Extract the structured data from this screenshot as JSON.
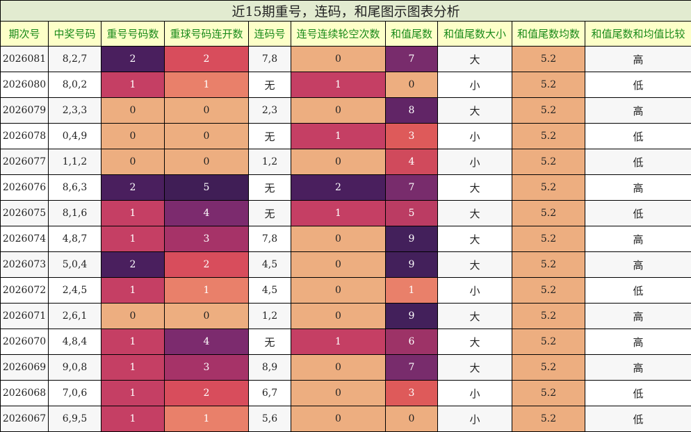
{
  "title": "近15期重号，连码，和尾图示图表分析",
  "headers": [
    "期次号",
    "中奖号码",
    "重号号码数",
    "重球号码连开数",
    "连码号",
    "连号连续轮空次数",
    "和值尾数",
    "和值尾数大小",
    "和值尾数均数",
    "和值尾数和均值比较"
  ],
  "rows": [
    {
      "period": "2026081",
      "numbers": "8,2,7",
      "repeat_count": "2",
      "repeat_streak": "2",
      "consec": "7,8",
      "consec_gap": "0",
      "sum_tail": "7",
      "size": "大",
      "avg": "5.2",
      "compare": "高"
    },
    {
      "period": "2026080",
      "numbers": "8,0,2",
      "repeat_count": "1",
      "repeat_streak": "1",
      "consec": "无",
      "consec_gap": "1",
      "sum_tail": "0",
      "size": "小",
      "avg": "5.2",
      "compare": "低"
    },
    {
      "period": "2026079",
      "numbers": "2,3,3",
      "repeat_count": "0",
      "repeat_streak": "0",
      "consec": "2,3",
      "consec_gap": "0",
      "sum_tail": "8",
      "size": "大",
      "avg": "5.2",
      "compare": "高"
    },
    {
      "period": "2026078",
      "numbers": "0,4,9",
      "repeat_count": "0",
      "repeat_streak": "0",
      "consec": "无",
      "consec_gap": "1",
      "sum_tail": "3",
      "size": "小",
      "avg": "5.2",
      "compare": "低"
    },
    {
      "period": "2026077",
      "numbers": "1,1,2",
      "repeat_count": "0",
      "repeat_streak": "0",
      "consec": "1,2",
      "consec_gap": "0",
      "sum_tail": "4",
      "size": "小",
      "avg": "5.2",
      "compare": "低"
    },
    {
      "period": "2026076",
      "numbers": "8,6,3",
      "repeat_count": "2",
      "repeat_streak": "5",
      "consec": "无",
      "consec_gap": "2",
      "sum_tail": "7",
      "size": "大",
      "avg": "5.2",
      "compare": "高"
    },
    {
      "period": "2026075",
      "numbers": "8,1,6",
      "repeat_count": "1",
      "repeat_streak": "4",
      "consec": "无",
      "consec_gap": "1",
      "sum_tail": "5",
      "size": "大",
      "avg": "5.2",
      "compare": "低"
    },
    {
      "period": "2026074",
      "numbers": "4,8,7",
      "repeat_count": "1",
      "repeat_streak": "3",
      "consec": "7,8",
      "consec_gap": "0",
      "sum_tail": "9",
      "size": "大",
      "avg": "5.2",
      "compare": "高"
    },
    {
      "period": "2026073",
      "numbers": "5,0,4",
      "repeat_count": "2",
      "repeat_streak": "2",
      "consec": "4,5",
      "consec_gap": "0",
      "sum_tail": "9",
      "size": "大",
      "avg": "5.2",
      "compare": "高"
    },
    {
      "period": "2026072",
      "numbers": "2,4,5",
      "repeat_count": "1",
      "repeat_streak": "1",
      "consec": "4,5",
      "consec_gap": "0",
      "sum_tail": "1",
      "size": "小",
      "avg": "5.2",
      "compare": "低"
    },
    {
      "period": "2026071",
      "numbers": "2,6,1",
      "repeat_count": "0",
      "repeat_streak": "0",
      "consec": "1,2",
      "consec_gap": "0",
      "sum_tail": "9",
      "size": "大",
      "avg": "5.2",
      "compare": "高"
    },
    {
      "period": "2026070",
      "numbers": "4,8,4",
      "repeat_count": "1",
      "repeat_streak": "4",
      "consec": "无",
      "consec_gap": "1",
      "sum_tail": "6",
      "size": "大",
      "avg": "5.2",
      "compare": "高"
    },
    {
      "period": "2026069",
      "numbers": "9,0,8",
      "repeat_count": "1",
      "repeat_streak": "3",
      "consec": "8,9",
      "consec_gap": "0",
      "sum_tail": "7",
      "size": "大",
      "avg": "5.2",
      "compare": "高"
    },
    {
      "period": "2026068",
      "numbers": "7,0,6",
      "repeat_count": "1",
      "repeat_streak": "2",
      "consec": "6,7",
      "consec_gap": "0",
      "sum_tail": "3",
      "size": "小",
      "avg": "5.2",
      "compare": "低"
    },
    {
      "period": "2026067",
      "numbers": "6,9,5",
      "repeat_count": "1",
      "repeat_streak": "1",
      "consec": "5,6",
      "consec_gap": "0",
      "sum_tail": "0",
      "size": "小",
      "avg": "5.2",
      "compare": "低"
    }
  ],
  "colors": {
    "title_bg": "#e2ebd0",
    "header_bg": "#fdffc8",
    "header_text": "#1a8a1a",
    "repeat_count": {
      "0": "#edae80",
      "1": "#c53f64",
      "2": "#4a1f5e"
    },
    "repeat_streak": {
      "0": "#edae80",
      "1": "#e9806a",
      "2": "#d84d5c",
      "3": "#a63368",
      "4": "#7c2b6e",
      "5": "#401e56"
    },
    "consec_gap": {
      "0": "#edae80",
      "1": "#c53f64",
      "2": "#4a1f5e"
    },
    "sum_tail": {
      "0": "#edae80",
      "1": "#e9806a",
      "3": "#de5a5a",
      "4": "#d04a5c",
      "5": "#bb3c63",
      "6": "#9d3367",
      "7": "#782c6c",
      "8": "#612566",
      "9": "#43205b"
    },
    "avg": "#edae80"
  },
  "chart_data": {
    "type": "table",
    "title": "近15期重号，连码，和尾图示图表分析",
    "columns": [
      "期次号",
      "中奖号码",
      "重号号码数",
      "重球号码连开数",
      "连码号",
      "连号连续轮空次数",
      "和值尾数",
      "和值尾数大小",
      "和值尾数均数",
      "和值尾数和均值比较"
    ],
    "x": [
      "2026081",
      "2026080",
      "2026079",
      "2026078",
      "2026077",
      "2026076",
      "2026075",
      "2026074",
      "2026073",
      "2026072",
      "2026071",
      "2026070",
      "2026069",
      "2026068",
      "2026067"
    ],
    "series": [
      {
        "name": "重号号码数",
        "values": [
          2,
          1,
          0,
          0,
          0,
          2,
          1,
          1,
          2,
          1,
          0,
          1,
          1,
          1,
          1
        ]
      },
      {
        "name": "重球号码连开数",
        "values": [
          2,
          1,
          0,
          0,
          0,
          5,
          4,
          3,
          2,
          1,
          0,
          4,
          3,
          2,
          1
        ]
      },
      {
        "name": "连号连续轮空次数",
        "values": [
          0,
          1,
          0,
          1,
          0,
          2,
          1,
          0,
          0,
          0,
          0,
          1,
          0,
          0,
          0
        ]
      },
      {
        "name": "和值尾数",
        "values": [
          7,
          0,
          8,
          3,
          4,
          7,
          5,
          9,
          9,
          1,
          9,
          6,
          7,
          3,
          0
        ]
      },
      {
        "name": "和值尾数均数",
        "values": [
          5.2,
          5.2,
          5.2,
          5.2,
          5.2,
          5.2,
          5.2,
          5.2,
          5.2,
          5.2,
          5.2,
          5.2,
          5.2,
          5.2,
          5.2
        ]
      }
    ]
  }
}
